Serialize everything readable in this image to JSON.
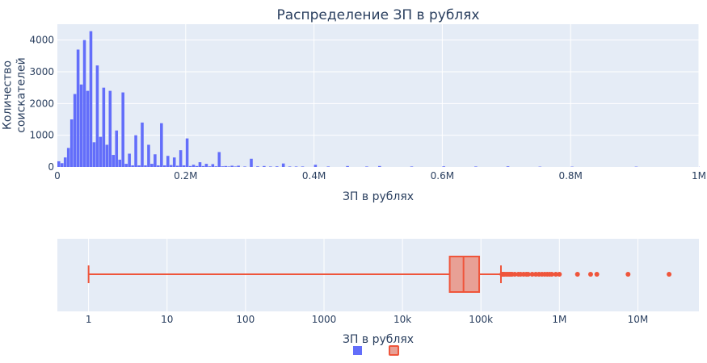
{
  "chart_data": [
    {
      "type": "histogram",
      "title": "Распределение ЗП в рублях",
      "xlabel": "ЗП в рублях",
      "ylabel": "Количество соискателей",
      "xlim": [
        0,
        1000000
      ],
      "ylim": [
        0,
        4500
      ],
      "x_ticks": [
        0,
        200000,
        400000,
        600000,
        800000,
        1000000
      ],
      "x_tick_labels": [
        "0",
        "0.2M",
        "0.4M",
        "0.6M",
        "0.8M",
        "1M"
      ],
      "y_ticks": [
        0,
        1000,
        2000,
        3000,
        4000
      ],
      "y_tick_labels": [
        "0",
        "1000",
        "2000",
        "3000",
        "4000"
      ],
      "bin_width": 5000,
      "color": "#636efa",
      "bins": [
        [
          0,
          180
        ],
        [
          5000,
          120
        ],
        [
          10000,
          300
        ],
        [
          15000,
          600
        ],
        [
          20000,
          1500
        ],
        [
          25000,
          2300
        ],
        [
          30000,
          3700
        ],
        [
          35000,
          2600
        ],
        [
          40000,
          4000
        ],
        [
          45000,
          2400
        ],
        [
          50000,
          4280
        ],
        [
          55000,
          780
        ],
        [
          60000,
          3200
        ],
        [
          65000,
          950
        ],
        [
          70000,
          2500
        ],
        [
          75000,
          700
        ],
        [
          80000,
          2400
        ],
        [
          85000,
          380
        ],
        [
          90000,
          1150
        ],
        [
          95000,
          230
        ],
        [
          100000,
          2350
        ],
        [
          105000,
          100
        ],
        [
          110000,
          420
        ],
        [
          115000,
          50
        ],
        [
          120000,
          1000
        ],
        [
          125000,
          50
        ],
        [
          130000,
          1400
        ],
        [
          135000,
          50
        ],
        [
          140000,
          700
        ],
        [
          145000,
          100
        ],
        [
          150000,
          400
        ],
        [
          155000,
          50
        ],
        [
          160000,
          1380
        ],
        [
          165000,
          50
        ],
        [
          170000,
          350
        ],
        [
          175000,
          60
        ],
        [
          180000,
          300
        ],
        [
          185000,
          40
        ],
        [
          190000,
          530
        ],
        [
          195000,
          50
        ],
        [
          200000,
          900
        ],
        [
          205000,
          30
        ],
        [
          210000,
          70
        ],
        [
          215000,
          30
        ],
        [
          220000,
          150
        ],
        [
          225000,
          30
        ],
        [
          230000,
          100
        ],
        [
          235000,
          20
        ],
        [
          240000,
          90
        ],
        [
          245000,
          20
        ],
        [
          250000,
          470
        ],
        [
          255000,
          20
        ],
        [
          260000,
          30
        ],
        [
          265000,
          15
        ],
        [
          270000,
          40
        ],
        [
          275000,
          15
        ],
        [
          280000,
          40
        ],
        [
          290000,
          15
        ],
        [
          300000,
          260
        ],
        [
          310000,
          20
        ],
        [
          320000,
          30
        ],
        [
          330000,
          15
        ],
        [
          340000,
          20
        ],
        [
          350000,
          110
        ],
        [
          360000,
          15
        ],
        [
          370000,
          15
        ],
        [
          380000,
          15
        ],
        [
          400000,
          70
        ],
        [
          420000,
          15
        ],
        [
          450000,
          30
        ],
        [
          480000,
          15
        ],
        [
          500000,
          30
        ],
        [
          550000,
          15
        ],
        [
          600000,
          20
        ],
        [
          650000,
          15
        ],
        [
          700000,
          20
        ],
        [
          750000,
          10
        ],
        [
          800000,
          10
        ],
        [
          900000,
          10
        ],
        [
          1000000,
          10
        ]
      ]
    },
    {
      "type": "box",
      "xlabel": "ЗП в рублях",
      "x_scale": "log",
      "xlim": [
        0.4,
        60000000
      ],
      "x_ticks": [
        1,
        10,
        100,
        1000,
        10000,
        100000,
        1000000,
        10000000
      ],
      "x_tick_labels": [
        "1",
        "10",
        "100",
        "1000",
        "10k",
        "100k",
        "1M",
        "10M"
      ],
      "color": "#ef553b",
      "fill_color": "#e8a095",
      "min": 1,
      "q1": 40000,
      "median": 60000,
      "q3": 95000,
      "upper_fence": 180000,
      "outliers": [
        185000,
        190000,
        195000,
        200000,
        210000,
        220000,
        230000,
        240000,
        250000,
        270000,
        300000,
        320000,
        350000,
        380000,
        400000,
        450000,
        500000,
        550000,
        600000,
        650000,
        700000,
        750000,
        800000,
        900000,
        1000000,
        1700000,
        2500000,
        3000000,
        7500000,
        25000000
      ]
    }
  ],
  "legend": [
    {
      "name": "",
      "color": "#636efa",
      "style": "filled"
    },
    {
      "name": "",
      "color": "#ef553b",
      "style": "outlined"
    }
  ]
}
